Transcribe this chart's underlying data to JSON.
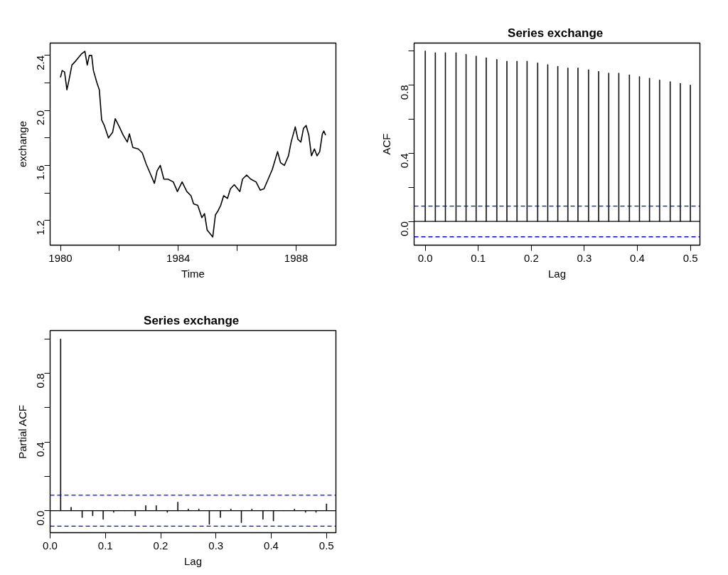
{
  "chart_data": [
    {
      "type": "line",
      "xlabel": "Time",
      "ylabel": "exchange",
      "xlim": [
        1979.65,
        1989.35
      ],
      "ylim": [
        1.02,
        2.49
      ],
      "xticks": [
        1980,
        {
          "value": 1982,
          "label": null
        },
        1984,
        {
          "value": 1986,
          "label": null
        },
        1988
      ],
      "yticks": [
        {
          "value": 1.2,
          "label": "1.2"
        },
        {
          "value": 1.4,
          "label": null
        },
        {
          "value": 1.6,
          "label": "1.6"
        },
        {
          "value": 1.8,
          "label": null
        },
        {
          "value": 2.0,
          "label": "2.0"
        },
        {
          "value": 2.2,
          "label": null
        },
        {
          "value": 2.4,
          "label": "2.4"
        }
      ],
      "grid": false,
      "marker": "none",
      "line_style": "solid",
      "series": [
        {
          "color": "#000000",
          "x": [
            1980.0,
            1980.06,
            1980.14,
            1980.22,
            1980.29,
            1980.39,
            1980.52,
            1980.71,
            1980.83,
            1980.91,
            1980.98,
            1981.06,
            1981.12,
            1981.24,
            1981.32,
            1981.4,
            1981.49,
            1981.63,
            1981.77,
            1981.86,
            1982.0,
            1982.13,
            1982.27,
            1982.34,
            1982.46,
            1982.64,
            1982.78,
            1982.91,
            1983.05,
            1983.19,
            1983.28,
            1983.39,
            1983.51,
            1983.65,
            1983.83,
            1983.97,
            1984.13,
            1984.29,
            1984.43,
            1984.52,
            1984.66,
            1984.8,
            1984.89,
            1984.98,
            1985.17,
            1985.26,
            1985.35,
            1985.44,
            1985.54,
            1985.67,
            1985.77,
            1985.9,
            1986.09,
            1986.18,
            1986.32,
            1986.46,
            1986.64,
            1986.78,
            1986.91,
            1987.05,
            1987.19,
            1987.37,
            1987.47,
            1987.6,
            1987.74,
            1987.83,
            1987.97,
            1988.06,
            1988.16,
            1988.25,
            1988.34,
            1988.43,
            1988.52,
            1988.62,
            1988.71,
            1988.8,
            1988.89,
            1988.94,
            1989.0
          ],
          "values": [
            2.24,
            2.29,
            2.28,
            2.15,
            2.22,
            2.33,
            2.36,
            2.41,
            2.43,
            2.33,
            2.4,
            2.4,
            2.29,
            2.2,
            2.15,
            1.93,
            1.89,
            1.8,
            1.84,
            1.94,
            1.88,
            1.82,
            1.77,
            1.83,
            1.73,
            1.72,
            1.69,
            1.61,
            1.54,
            1.47,
            1.56,
            1.6,
            1.5,
            1.5,
            1.48,
            1.41,
            1.48,
            1.41,
            1.38,
            1.32,
            1.31,
            1.22,
            1.25,
            1.13,
            1.08,
            1.24,
            1.27,
            1.31,
            1.38,
            1.36,
            1.43,
            1.46,
            1.41,
            1.5,
            1.53,
            1.5,
            1.48,
            1.42,
            1.43,
            1.5,
            1.57,
            1.7,
            1.62,
            1.6,
            1.67,
            1.77,
            1.88,
            1.79,
            1.77,
            1.87,
            1.89,
            1.82,
            1.67,
            1.72,
            1.67,
            1.7,
            1.83,
            1.85,
            1.82
          ]
        }
      ]
    },
    {
      "type": "bar",
      "title": "Series  exchange",
      "xlabel": "Lag",
      "ylabel": "ACF",
      "xlim": [
        -0.021,
        0.518
      ],
      "ylim": [
        -0.139,
        1.046
      ],
      "xticks": [
        {
          "value": 0,
          "label": "0.0"
        },
        {
          "value": 0.1,
          "label": "0.1"
        },
        {
          "value": 0.2,
          "label": "0.2"
        },
        {
          "value": 0.3,
          "label": "0.3"
        },
        {
          "value": 0.4,
          "label": "0.4"
        },
        {
          "value": 0.5,
          "label": "0.5"
        }
      ],
      "yticks": [
        {
          "value": 0,
          "label": "0.0"
        },
        {
          "value": 0.2,
          "label": null
        },
        {
          "value": 0.4,
          "label": "0.4"
        },
        {
          "value": 0.6,
          "label": null
        },
        {
          "value": 0.8,
          "label": "0.8"
        },
        {
          "value": 1.0,
          "label": null
        }
      ],
      "grid": false,
      "x": [
        0.0,
        0.019,
        0.038,
        0.058,
        0.077,
        0.096,
        0.115,
        0.135,
        0.154,
        0.173,
        0.192,
        0.212,
        0.231,
        0.25,
        0.269,
        0.288,
        0.308,
        0.327,
        0.346,
        0.365,
        0.385,
        0.404,
        0.423,
        0.442,
        0.462,
        0.481,
        0.5
      ],
      "values": [
        1.0,
        0.99,
        0.99,
        0.99,
        0.98,
        0.97,
        0.96,
        0.95,
        0.94,
        0.94,
        0.94,
        0.93,
        0.92,
        0.91,
        0.9,
        0.9,
        0.89,
        0.88,
        0.87,
        0.87,
        0.86,
        0.85,
        0.84,
        0.83,
        0.82,
        0.81,
        0.8
      ],
      "color": "#000000",
      "ref_lines": [
        {
          "axis": "y",
          "value": 0,
          "color": "#000000",
          "line_style": "solid"
        },
        {
          "axis": "y",
          "value": 0.09,
          "color": "#0000ff",
          "line_style": "dashed"
        },
        {
          "axis": "y",
          "value": -0.09,
          "color": "#0000ff",
          "line_style": "dashed"
        }
      ]
    },
    {
      "type": "bar",
      "title": "Series  exchange",
      "xlabel": "Lag",
      "ylabel": "Partial ACF",
      "xlim": [
        0.0,
        0.517
      ],
      "ylim": [
        -0.128,
        1.049
      ],
      "xticks": [
        {
          "value": 0,
          "label": "0.0"
        },
        {
          "value": 0.1,
          "label": "0.1"
        },
        {
          "value": 0.2,
          "label": "0.2"
        },
        {
          "value": 0.3,
          "label": "0.3"
        },
        {
          "value": 0.4,
          "label": "0.4"
        },
        {
          "value": 0.5,
          "label": "0.5"
        }
      ],
      "yticks": [
        {
          "value": 0,
          "label": "0.0"
        },
        {
          "value": 0.2,
          "label": null
        },
        {
          "value": 0.4,
          "label": "0.4"
        },
        {
          "value": 0.6,
          "label": null
        },
        {
          "value": 0.8,
          "label": "0.8"
        },
        {
          "value": 1.0,
          "label": null
        }
      ],
      "grid": false,
      "x": [
        0.019,
        0.038,
        0.058,
        0.077,
        0.096,
        0.115,
        0.135,
        0.154,
        0.173,
        0.192,
        0.212,
        0.231,
        0.25,
        0.269,
        0.288,
        0.308,
        0.327,
        0.346,
        0.365,
        0.385,
        0.404,
        0.423,
        0.442,
        0.462,
        0.481,
        0.5
      ],
      "values": [
        1.0,
        0.02,
        -0.04,
        -0.03,
        -0.05,
        -0.01,
        0.0,
        -0.03,
        0.03,
        0.03,
        -0.01,
        0.05,
        0.01,
        0.01,
        -0.08,
        -0.04,
        0.01,
        -0.07,
        0.01,
        -0.05,
        -0.06,
        0.0,
        0.01,
        -0.01,
        -0.01,
        0.04
      ],
      "color": "#000000",
      "ref_lines": [
        {
          "axis": "y",
          "value": 0,
          "color": "#000000",
          "line_style": "solid"
        },
        {
          "axis": "y",
          "value": 0.09,
          "color": "#0000ff",
          "line_style": "dashed"
        },
        {
          "axis": "y",
          "value": -0.09,
          "color": "#0000ff",
          "line_style": "dashed"
        }
      ]
    }
  ]
}
